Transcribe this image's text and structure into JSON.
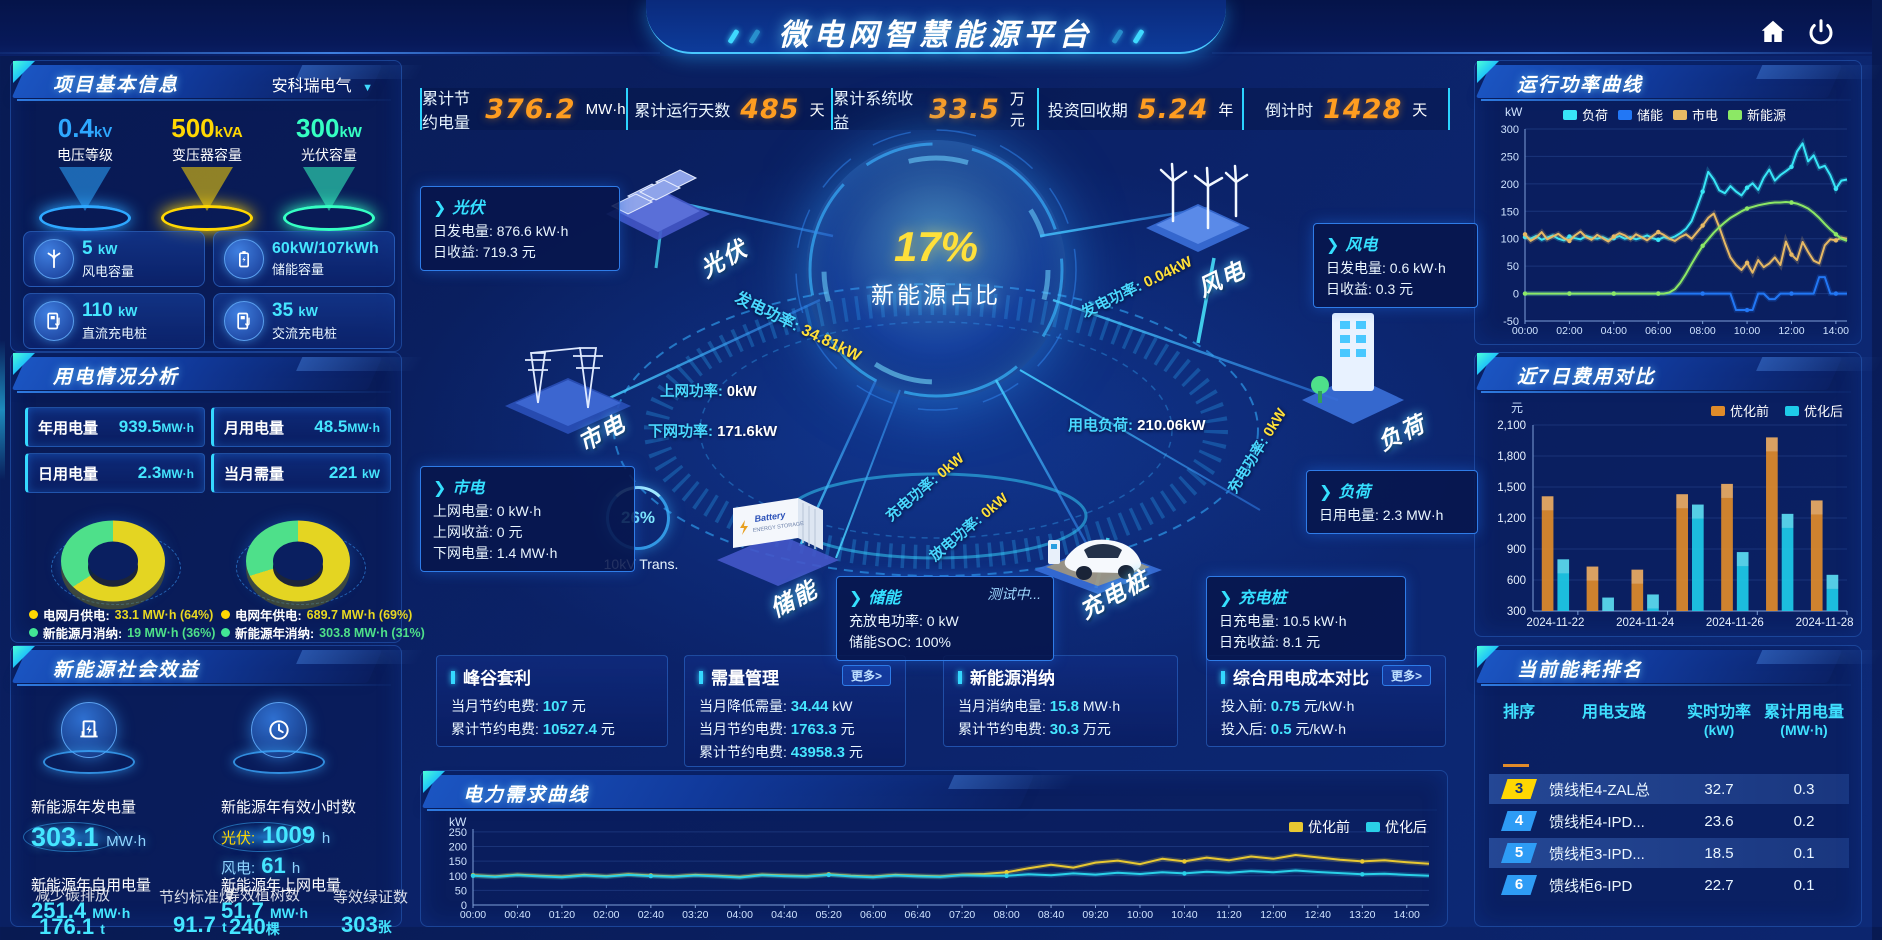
{
  "app": {
    "title": "微电网智慧能源平台"
  },
  "topbar": {
    "stats": [
      {
        "label": "累计节约电量",
        "value": "376.2",
        "unit": "MW·h"
      },
      {
        "label": "累计运行天数",
        "value": "485",
        "unit": "天"
      },
      {
        "label": "累计系统收益",
        "value": "33.5",
        "unit": "万元"
      },
      {
        "label": "投资回收期",
        "value": "5.24",
        "unit": "年"
      },
      {
        "label": "倒计时",
        "value": "1428",
        "unit": "天"
      }
    ]
  },
  "project": {
    "title": "项目基本信息",
    "company": "安科瑞电气",
    "spotlights": [
      {
        "value": "0.4",
        "unit": "kV",
        "label": "电压等级",
        "color": "#2ea8ff"
      },
      {
        "value": "500",
        "unit": "kVA",
        "label": "变压器容量",
        "color": "#ffd702"
      },
      {
        "value": "300",
        "unit": "kW",
        "label": "光伏容量",
        "color": "#35ffc3"
      }
    ],
    "cards": [
      {
        "value": "5",
        "unit": "kW",
        "label": "风电容量",
        "icon": "wind-turbine-icon"
      },
      {
        "value": "60kW/107kWh",
        "unit": "",
        "label": "储能容量",
        "icon": "battery-icon"
      },
      {
        "value": "110",
        "unit": "kW",
        "label": "直流充电桩",
        "icon": "dc-charger-icon"
      },
      {
        "value": "35",
        "unit": "kW",
        "label": "交流充电桩",
        "icon": "ac-charger-icon"
      }
    ]
  },
  "usage": {
    "title": "用电情况分析",
    "metrics": [
      {
        "label": "年用电量",
        "value": "939.5",
        "unit": "MW·h"
      },
      {
        "label": "月用电量",
        "value": "48.5",
        "unit": "MW·h"
      },
      {
        "label": "日用电量",
        "value": "2.3",
        "unit": "MW·h"
      },
      {
        "label": "当月需量",
        "value": "221",
        "unit": "kW"
      }
    ],
    "legend": [
      {
        "label": "电网月供电:",
        "value": "33.1 MW·h (64%)",
        "color": "#ffd702"
      },
      {
        "label": "新能源月消纳:",
        "value": "19 MW·h (36%)",
        "color": "#42e695"
      },
      {
        "label": "电网年供电:",
        "value": "689.7 MW·h (69%)",
        "color": "#ffd702"
      },
      {
        "label": "新能源年消纳:",
        "value": "303.8 MW·h (31%)",
        "color": "#42e695"
      }
    ]
  },
  "benefit": {
    "title": "新能源社会效益",
    "gen_label": "新能源年发电量",
    "gen_value": "303.1",
    "gen_unit": "MW·h",
    "hours_label": "新能源年有效小时数",
    "pv_label": "光伏:",
    "pv_value": "1009",
    "pv_unit": "h",
    "wind_label": "风电:",
    "wind_value": "61",
    "wind_unit": "h",
    "self_label": "新能源年自用电量",
    "self_value": "251.4",
    "self_unit": "MW·h",
    "feed_label": "新能源年上网电量",
    "feed_value": "51.7",
    "feed_unit": "MW·h",
    "co2_label": "减少碳排放",
    "co2_value": "176.1",
    "co2_unit": "t",
    "coal_label": "节约标准煤",
    "coal_value": "91.7",
    "coal_unit": "t",
    "tree_label": "等效植树数",
    "tree_value": "240",
    "tree_unit": "棵",
    "cert_label": "等效绿证数",
    "cert_value": "303",
    "cert_unit": "张"
  },
  "center": {
    "ratio_value": "17%",
    "ratio_label": "新能源占比",
    "transformer_percent": "26%",
    "transformer_label": "10kV Trans.",
    "devices": {
      "pv": "光伏",
      "wind": "风电",
      "grid": "市电",
      "load": "负荷",
      "storage": "储能",
      "charger": "充电桩"
    },
    "flows": {
      "pv_gen": {
        "label": "发电功率:",
        "value": "34.81kW"
      },
      "wind_gen": {
        "label": "发电功率:",
        "value": "0.04kW"
      },
      "feed_in": {
        "label": "上网功率:",
        "value": "0kW"
      },
      "feed_down": {
        "label": "下网功率:",
        "value": "171.6kW"
      },
      "load_power": {
        "label": "用电负荷:",
        "value": "210.06kW"
      },
      "charge": {
        "label": "充电功率:",
        "value": "0kW"
      },
      "discharge": {
        "label": "放电功率:",
        "value": "0kW"
      },
      "ev_charge": {
        "label": "充电功率:",
        "value": "0kW"
      }
    },
    "boxes": {
      "pv": {
        "title": "光伏",
        "rows": [
          {
            "label": "日发电量:",
            "value": "876.6 kW·h"
          },
          {
            "label": "日收益:",
            "value": "719.3 元"
          }
        ]
      },
      "wind": {
        "title": "风电",
        "rows": [
          {
            "label": "日发电量:",
            "value": "0.6 kW·h"
          },
          {
            "label": "日收益:",
            "value": "0.3 元"
          }
        ]
      },
      "grid": {
        "title": "市电",
        "rows": [
          {
            "label": "上网电量:",
            "value": "0 kW·h"
          },
          {
            "label": "上网收益:",
            "value": "0 元"
          },
          {
            "label": "下网电量:",
            "value": "1.4 MW·h"
          }
        ]
      },
      "load": {
        "title": "负荷",
        "rows": [
          {
            "label": "日用电量:",
            "value": "2.3 MW·h"
          }
        ]
      },
      "storage": {
        "title": "储能",
        "status": "测试中...",
        "rows": [
          {
            "label": "充放电功率:",
            "value": "0 kW"
          },
          {
            "label": "储能SOC:",
            "value": "100%"
          }
        ]
      },
      "charger": {
        "title": "充电桩",
        "rows": [
          {
            "label": "日充电量:",
            "value": "10.5 kW·h"
          },
          {
            "label": "日充收益:",
            "value": "8.1 元"
          }
        ]
      }
    }
  },
  "bottom_boxes": [
    {
      "title": "峰谷套利",
      "more": "",
      "rows": [
        {
          "label": "当月节约电费:",
          "value": "107",
          "unit": "元"
        },
        {
          "label": "累计节约电费:",
          "value": "10527.4",
          "unit": "元"
        }
      ]
    },
    {
      "title": "需量管理",
      "more": "更多>",
      "rows": [
        {
          "label": "当月降低需量:",
          "value": "34.44",
          "unit": "kW"
        },
        {
          "label": "当月节约电费:",
          "value": "1763.3",
          "unit": "元"
        },
        {
          "label": "累计节约电费:",
          "value": "43958.3",
          "unit": "元"
        }
      ]
    },
    {
      "title": "新能源消纳",
      "more": "",
      "rows": [
        {
          "label": "当月消纳电量:",
          "value": "15.8",
          "unit": "MW·h"
        },
        {
          "label": "累计节约电费:",
          "value": "30.3",
          "unit": "万元"
        }
      ]
    },
    {
      "title": "综合用电成本对比",
      "more": "更多>",
      "rows": [
        {
          "label": "投入前:",
          "value": "0.75",
          "unit": "元/kW·h"
        },
        {
          "label": "投入后:",
          "value": "0.5",
          "unit": "元/kW·h"
        }
      ]
    }
  ],
  "power_panel": {
    "title": "运行功率曲线",
    "ylabel": "kW"
  },
  "cost_panel": {
    "title": "近7日费用对比",
    "ylabel": "元"
  },
  "demand_panel": {
    "title": "电力需求曲线",
    "ylabel": "kW"
  },
  "ranking": {
    "title": "当前能耗排名",
    "headers": [
      "排序",
      "用电支路",
      "实时功率",
      "累计用电量"
    ],
    "header_units": [
      "",
      "",
      "(kW)",
      "(MW·h)"
    ],
    "rows": [
      {
        "rank": "3",
        "branch": "馈线柜4-ZAL总",
        "power": "32.7",
        "energy": "0.3"
      },
      {
        "rank": "4",
        "branch": "馈线柜4-IPD...",
        "power": "23.6",
        "energy": "0.2"
      },
      {
        "rank": "5",
        "branch": "馈线柜3-IPD...",
        "power": "18.5",
        "energy": "0.1"
      },
      {
        "rank": "6",
        "branch": "馈线柜6-IPD",
        "power": "22.7",
        "energy": "0.1"
      }
    ]
  },
  "chart_data": [
    {
      "id": "power_curve",
      "type": "line",
      "title": "运行功率曲线",
      "ylabel": "kW",
      "ylim": [
        -50,
        300
      ],
      "yticks": [
        -50,
        0,
        50,
        100,
        150,
        200,
        250,
        300
      ],
      "x_minutes_step": 15,
      "x_total_minutes": 870,
      "xticks": [
        "00:00",
        "02:00",
        "04:00",
        "06:00",
        "08:00",
        "10:00",
        "12:00",
        "14:00"
      ],
      "xtick_minutes": [
        0,
        120,
        240,
        360,
        480,
        600,
        720,
        840
      ],
      "legend_position": "top",
      "grid": true,
      "series": [
        {
          "name": "负荷",
          "color": "#38e6f7",
          "values": [
            103,
            100,
            105,
            98,
            102,
            106,
            100,
            97,
            104,
            101,
            99,
            105,
            102,
            100,
            103,
            98,
            101,
            105,
            100,
            103,
            99,
            102,
            106,
            101,
            98,
            103,
            100,
            104,
            110,
            118,
            132,
            158,
            186,
            222,
            208,
            188,
            183,
            196,
            186,
            179,
            193,
            201,
            189,
            211,
            226,
            206,
            216,
            223,
            231,
            259,
            274,
            241,
            252,
            229,
            233,
            216,
            191,
            206,
            208
          ]
        },
        {
          "name": "储能",
          "color": "#2277f5",
          "values": [
            0,
            0,
            0,
            0,
            0,
            0,
            0,
            0,
            0,
            0,
            0,
            0,
            0,
            0,
            0,
            0,
            0,
            0,
            0,
            0,
            0,
            0,
            0,
            0,
            0,
            0,
            0,
            0,
            0,
            0,
            0,
            0,
            0,
            0,
            0,
            0,
            0,
            0,
            -30,
            -30,
            -30,
            -30,
            0,
            0,
            -10,
            -10,
            0,
            0,
            0,
            0,
            0,
            0,
            0,
            30,
            30,
            0,
            0,
            0,
            0
          ]
        },
        {
          "name": "市电",
          "color": "#e7b964",
          "values": [
            108,
            96,
            102,
            112,
            99,
            104,
            109,
            101,
            96,
            106,
            113,
            103,
            98,
            107,
            101,
            95,
            104,
            110,
            106,
            99,
            108,
            103,
            97,
            105,
            112,
            107,
            100,
            96,
            103,
            108,
            100,
            112,
            124,
            138,
            146,
            121,
            92,
            66,
            52,
            43,
            56,
            38,
            61,
            48,
            55,
            66,
            52,
            95,
            71,
            61,
            94,
            76,
            60,
            55,
            88,
            99,
            97,
            102,
            100
          ]
        },
        {
          "name": "新能源",
          "color": "#8ce865",
          "values": [
            0,
            0,
            0,
            0,
            0,
            0,
            0,
            0,
            0,
            0,
            0,
            0,
            0,
            0,
            0,
            0,
            0,
            0,
            0,
            0,
            0,
            0,
            0,
            0,
            0,
            0,
            2,
            8,
            20,
            36,
            54,
            71,
            87,
            99,
            111,
            121,
            130,
            138,
            144,
            150,
            155,
            158,
            161,
            163,
            165,
            166,
            166,
            167,
            166,
            164,
            160,
            155,
            147,
            138,
            127,
            117,
            108,
            100,
            96
          ]
        }
      ]
    },
    {
      "id": "cost_compare",
      "type": "bar",
      "title": "近7日费用对比",
      "ylabel": "元",
      "ylim": [
        300,
        2100
      ],
      "yticks": [
        300,
        600,
        900,
        1200,
        1500,
        1800,
        2100
      ],
      "categories": [
        "2024-11-22",
        "2024-11-23",
        "2024-11-24",
        "2024-11-25",
        "2024-11-26",
        "2024-11-27",
        "2024-11-28"
      ],
      "xtick_labels": [
        "2024-11-22",
        "2024-11-24",
        "2024-11-26",
        "2024-11-28"
      ],
      "xtick_index": [
        0,
        2,
        4,
        6
      ],
      "grid": true,
      "legend_position": "top-right",
      "series": [
        {
          "name": "优化前",
          "color": "#e08b2a",
          "values": [
            1410,
            730,
            700,
            1430,
            1530,
            1980,
            1370
          ]
        },
        {
          "name": "优化后",
          "color": "#1ecbe8",
          "values": [
            800,
            430,
            460,
            1330,
            870,
            1240,
            650
          ]
        }
      ]
    },
    {
      "id": "demand_curve",
      "type": "line",
      "title": "电力需求曲线",
      "ylabel": "kW",
      "ylim": [
        0,
        260
      ],
      "yticks": [
        0,
        50,
        100,
        150,
        200,
        250
      ],
      "x_minutes_step": 20,
      "x_total_minutes": 860,
      "xticks": [
        "00:00",
        "00:40",
        "01:20",
        "02:00",
        "02:40",
        "03:20",
        "04:00",
        "04:40",
        "05:20",
        "06:00",
        "06:40",
        "07:20",
        "08:00",
        "08:40",
        "09:20",
        "10:00",
        "10:40",
        "11:20",
        "12:00",
        "12:40",
        "13:20",
        "14:00"
      ],
      "xtick_minutes": [
        0,
        40,
        80,
        120,
        160,
        200,
        240,
        280,
        320,
        360,
        400,
        440,
        480,
        520,
        560,
        600,
        640,
        680,
        720,
        760,
        800,
        840
      ],
      "legend_position": "top-right",
      "grid": true,
      "series": [
        {
          "name": "优化前",
          "color": "#e8c832",
          "values": [
            102,
            98,
            104,
            100,
            97,
            103,
            99,
            105,
            101,
            98,
            103,
            100,
            96,
            104,
            101,
            99,
            105,
            100,
            97,
            103,
            100,
            98,
            104,
            106,
            112,
            126,
            138,
            128,
            145,
            152,
            140,
            158,
            149,
            162,
            153,
            166,
            158,
            171,
            163,
            155,
            149,
            153,
            146,
            141
          ]
        },
        {
          "name": "优化后",
          "color": "#2ad0e8",
          "values": [
            100,
            96,
            102,
            98,
            95,
            101,
            97,
            103,
            99,
            96,
            101,
            98,
            94,
            102,
            99,
            97,
            103,
            98,
            95,
            101,
            98,
            96,
            102,
            100,
            100,
            105,
            102,
            108,
            104,
            110,
            106,
            112,
            108,
            114,
            110,
            116,
            112,
            118,
            113,
            109,
            105,
            107,
            103,
            100
          ]
        }
      ]
    },
    {
      "id": "month_mix_donut",
      "type": "pie",
      "slices": [
        {
          "label": "电网月供电",
          "value": 64,
          "color": "#e4d522"
        },
        {
          "label": "新能源月消纳",
          "value": 36,
          "color": "#4ee08a"
        }
      ]
    },
    {
      "id": "year_mix_donut",
      "type": "pie",
      "slices": [
        {
          "label": "电网年供电",
          "value": 69,
          "color": "#e4d522"
        },
        {
          "label": "新能源年消纳",
          "value": 31,
          "color": "#4ee08a"
        }
      ]
    }
  ]
}
